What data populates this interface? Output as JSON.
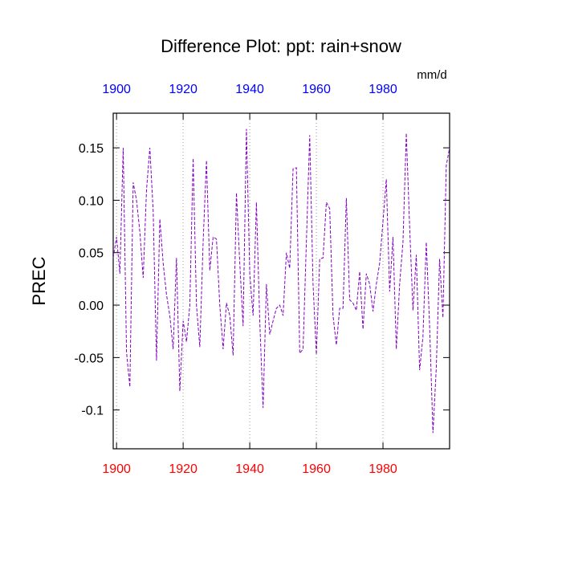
{
  "chart_data": {
    "type": "line",
    "title": "Difference Plot: ppt: rain+snow",
    "units": "mm/d",
    "y_label": "PREC",
    "x": [
      1899,
      1900,
      1901,
      1902,
      1903,
      1904,
      1905,
      1906,
      1907,
      1908,
      1909,
      1910,
      1911,
      1912,
      1913,
      1914,
      1915,
      1916,
      1917,
      1918,
      1919,
      1920,
      1921,
      1922,
      1923,
      1924,
      1925,
      1926,
      1927,
      1928,
      1929,
      1930,
      1931,
      1932,
      1933,
      1934,
      1935,
      1936,
      1937,
      1938,
      1939,
      1940,
      1941,
      1942,
      1943,
      1944,
      1945,
      1946,
      1947,
      1948,
      1949,
      1950,
      1951,
      1952,
      1953,
      1954,
      1955,
      1956,
      1957,
      1958,
      1959,
      1960,
      1961,
      1962,
      1963,
      1964,
      1965,
      1966,
      1967,
      1968,
      1969,
      1970,
      1971,
      1972,
      1973,
      1974,
      1975,
      1976,
      1977,
      1978,
      1979,
      1980,
      1981,
      1982,
      1983,
      1984,
      1985,
      1986,
      1987,
      1988,
      1989,
      1990,
      1991,
      1992,
      1993,
      1994,
      1995,
      1996,
      1997,
      1998,
      1999,
      2000
    ],
    "series": [
      {
        "color": "#8000c0",
        "values": [
          0.045,
          0.065,
          0.03,
          0.15,
          -0.045,
          -0.078,
          0.117,
          0.1,
          0.07,
          0.026,
          0.11,
          0.15,
          0.09,
          -0.053,
          0.082,
          0.04,
          0.01,
          -0.01,
          -0.042,
          0.045,
          -0.082,
          -0.015,
          -0.035,
          0.0,
          0.14,
          0.0,
          -0.04,
          0.06,
          0.138,
          0.033,
          0.065,
          0.063,
          0.0,
          -0.042,
          0.002,
          -0.01,
          -0.048,
          0.107,
          0.04,
          -0.02,
          0.168,
          0.03,
          -0.01,
          0.098,
          -0.015,
          -0.098,
          0.02,
          -0.028,
          -0.015,
          -0.003,
          0.0,
          -0.01,
          0.05,
          0.035,
          0.13,
          0.131,
          -0.046,
          -0.042,
          0.06,
          0.162,
          0.02,
          -0.047,
          0.044,
          0.045,
          0.098,
          0.092,
          -0.01,
          -0.038,
          -0.003,
          -0.003,
          0.102,
          0.005,
          0.002,
          -0.005,
          0.032,
          -0.023,
          0.03,
          0.02,
          -0.006,
          0.02,
          0.04,
          0.08,
          0.12,
          0.013,
          0.065,
          -0.042,
          0.02,
          0.06,
          0.164,
          0.075,
          -0.005,
          0.048,
          -0.062,
          -0.03,
          0.06,
          -0.02,
          -0.122,
          -0.06,
          0.044,
          -0.012,
          0.133,
          0.15
        ]
      }
    ],
    "xlim": [
      1899,
      2000
    ],
    "xticks": [
      1900,
      1920,
      1940,
      1960,
      1980
    ],
    "ylim": [
      -0.137,
      0.183
    ],
    "yticks": [
      -0.1,
      {
        "value": -0.1,
        "label": "-0.10"
      },
      -0.05,
      {
        "value": 0,
        "label": "0.00"
      },
      0.05,
      {
        "value": 0.1,
        "label": "0.10"
      },
      0.15
    ],
    "top_tick_color": "#0000ff",
    "bottom_tick_color": "#ff0000",
    "dashed": true,
    "xgrid": true
  }
}
